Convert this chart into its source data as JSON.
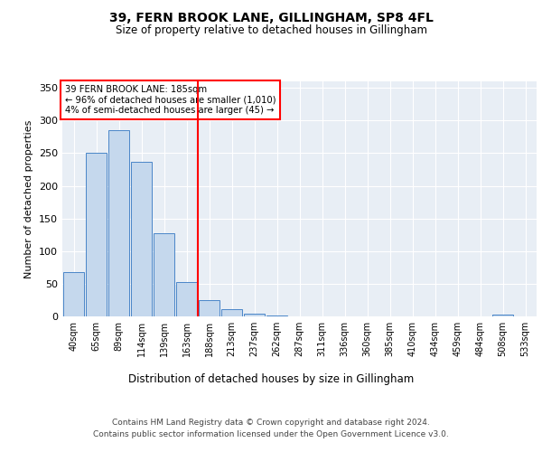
{
  "title1": "39, FERN BROOK LANE, GILLINGHAM, SP8 4FL",
  "title2": "Size of property relative to detached houses in Gillingham",
  "xlabel": "Distribution of detached houses by size in Gillingham",
  "ylabel": "Number of detached properties",
  "bar_labels": [
    "40sqm",
    "65sqm",
    "89sqm",
    "114sqm",
    "139sqm",
    "163sqm",
    "188sqm",
    "213sqm",
    "237sqm",
    "262sqm",
    "287sqm",
    "311sqm",
    "336sqm",
    "360sqm",
    "385sqm",
    "410sqm",
    "434sqm",
    "459sqm",
    "484sqm",
    "508sqm",
    "533sqm"
  ],
  "bar_values": [
    68,
    250,
    285,
    237,
    128,
    53,
    25,
    11,
    4,
    2,
    0,
    0,
    0,
    0,
    0,
    0,
    0,
    0,
    0,
    3,
    0
  ],
  "bar_color": "#c5d8ed",
  "bar_edge_color": "#4a86c8",
  "property_line_x": 5.5,
  "property_line_label": "39 FERN BROOK LANE: 185sqm",
  "annotation_line1": "← 96% of detached houses are smaller (1,010)",
  "annotation_line2": "4% of semi-detached houses are larger (45) →",
  "annotation_box_color": "white",
  "annotation_box_edge": "red",
  "vline_color": "red",
  "ylim": [
    0,
    360
  ],
  "yticks": [
    0,
    50,
    100,
    150,
    200,
    250,
    300,
    350
  ],
  "bg_color": "#e8eef5",
  "footer1": "Contains HM Land Registry data © Crown copyright and database right 2024.",
  "footer2": "Contains public sector information licensed under the Open Government Licence v3.0."
}
